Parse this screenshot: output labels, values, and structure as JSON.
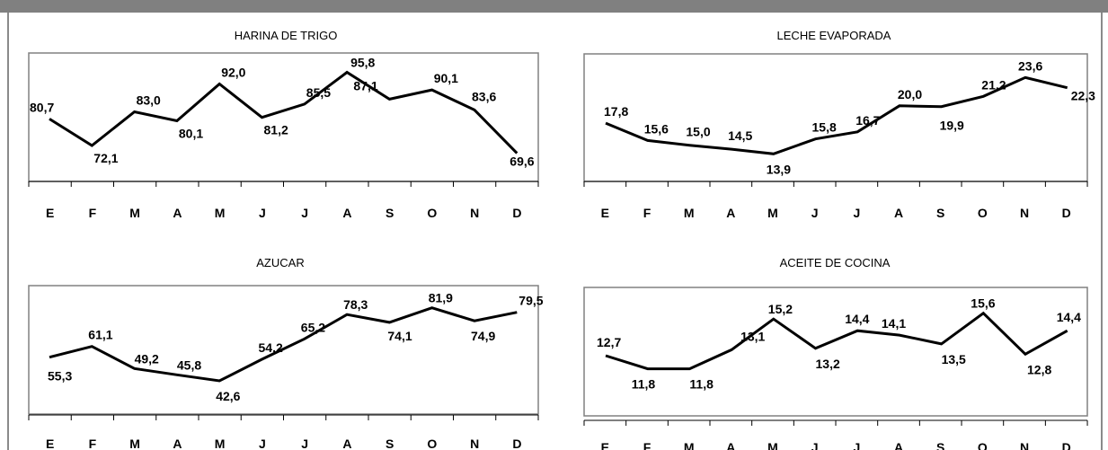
{
  "colors": {
    "top_bar": "#808080",
    "line": "#000000",
    "frame": "#808080"
  },
  "chart_data": [
    {
      "type": "line",
      "title": "HARINA DE TRIGO",
      "categories": [
        "E",
        "F",
        "M",
        "A",
        "M",
        "J",
        "J",
        "A",
        "S",
        "O",
        "N",
        "D"
      ],
      "values": [
        80.7,
        72.1,
        83.0,
        80.1,
        92.0,
        81.2,
        85.5,
        95.8,
        87.1,
        90.1,
        83.6,
        69.6
      ],
      "labels": [
        "80,7",
        "72,1",
        "83,0",
        "80,1",
        "92,0",
        "81,2",
        "85,5",
        "95,8",
        "87,1",
        "90,1",
        "83,6",
        "69,6"
      ],
      "ylim": [
        66,
        100
      ],
      "grid": false
    },
    {
      "type": "line",
      "title": "LECHE EVAPORADA",
      "categories": [
        "E",
        "F",
        "M",
        "A",
        "M",
        "J",
        "J",
        "A",
        "S",
        "O",
        "N",
        "D"
      ],
      "values": [
        17.8,
        15.6,
        15.0,
        14.5,
        13.9,
        15.8,
        16.7,
        20.0,
        19.9,
        21.2,
        23.6,
        22.3
      ],
      "labels": [
        "17,8",
        "15,6",
        "15,0",
        "14,5",
        "13,9",
        "15,8",
        "16,7",
        "20,0",
        "19,9",
        "21,2",
        "23,6",
        "22,3"
      ],
      "ylim": [
        12,
        25
      ],
      "grid": false
    },
    {
      "type": "line",
      "title": "AZUCAR",
      "categories": [
        "E",
        "F",
        "M",
        "A",
        "M",
        "J",
        "J",
        "A",
        "S",
        "O",
        "N",
        "D"
      ],
      "values": [
        55.3,
        61.1,
        49.2,
        45.8,
        42.6,
        54.2,
        65.2,
        78.3,
        74.1,
        81.9,
        74.9,
        79.5
      ],
      "labels": [
        "55,3",
        "61,1",
        "49,2",
        "45,8",
        "42,6",
        "54,2",
        "65,2",
        "78,3",
        "74,1",
        "81,9",
        "74,9",
        "79,5"
      ],
      "ylim": [
        30,
        90
      ],
      "grid": false
    },
    {
      "type": "line",
      "title": "ACEITE DE COCINA",
      "categories": [
        "E",
        "F",
        "M",
        "A",
        "M",
        "J",
        "J",
        "A",
        "S",
        "O",
        "N",
        "D"
      ],
      "values": [
        12.7,
        11.8,
        11.8,
        13.1,
        15.2,
        13.2,
        14.4,
        14.1,
        13.5,
        15.6,
        12.8,
        14.4
      ],
      "labels": [
        "12,7",
        "11,8",
        "11,8",
        "13,1",
        "15,2",
        "13,2",
        "14,4",
        "14,1",
        "13,5",
        "15,6",
        "12,8",
        "14,4"
      ],
      "ylim": [
        10,
        16.5
      ],
      "grid": false
    }
  ]
}
